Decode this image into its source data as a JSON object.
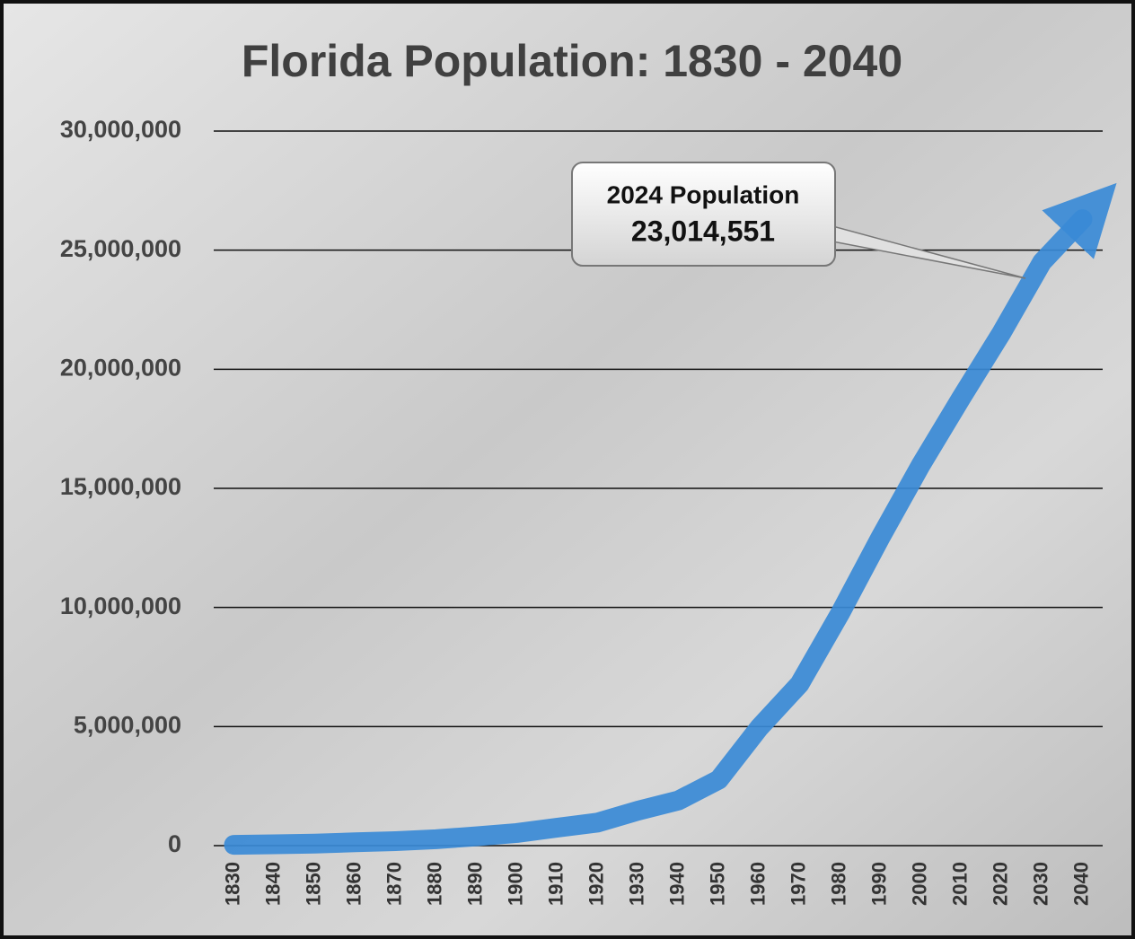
{
  "chart_data": {
    "type": "line",
    "title": "Florida Population: 1830 - 2040",
    "categories": [
      "1830",
      "1840",
      "1850",
      "1860",
      "1870",
      "1880",
      "1890",
      "1900",
      "1910",
      "1920",
      "1930",
      "1940",
      "1950",
      "1960",
      "1970",
      "1980",
      "1990",
      "2000",
      "2010",
      "2020",
      "2030",
      "2040"
    ],
    "values": [
      35000,
      55000,
      87000,
      140000,
      188000,
      269000,
      391000,
      529000,
      753000,
      968000,
      1468000,
      1897000,
      2771000,
      4952000,
      6789000,
      9746000,
      12938000,
      15982000,
      18801000,
      21538000,
      24500000,
      26300000
    ],
    "color": "#3a8ad6",
    "ylim": [
      0,
      30000000
    ],
    "yticks": [
      0,
      {
        "value": 5000000,
        "label": "5,000,000"
      },
      {
        "value": 10000000,
        "label": "10,000,000"
      },
      {
        "value": 15000000,
        "label": "15,000,000"
      },
      {
        "value": 20000000,
        "label": "20,000,000"
      },
      {
        "value": 25000000,
        "label": "25,000,000"
      },
      {
        "value": 30000000,
        "label": "30,000,000"
      }
    ],
    "grid": true,
    "annotation": {
      "title": "2024 Population",
      "value": "23,014,551"
    }
  }
}
